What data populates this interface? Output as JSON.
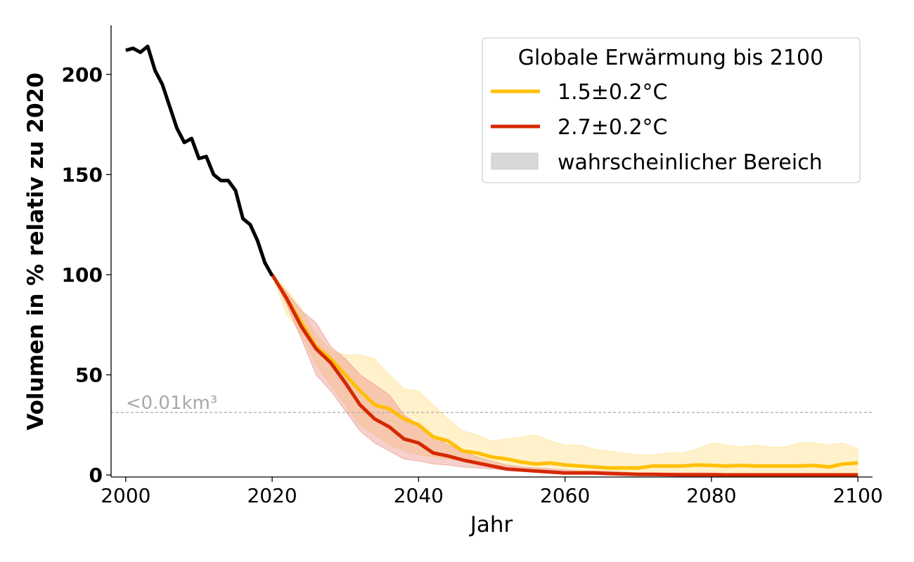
{
  "chart_data": {
    "type": "line",
    "title": "",
    "xlabel": "Jahr",
    "ylabel": "Volumen in % relativ zu 2020",
    "xlim": [
      1998,
      2102
    ],
    "ylim": [
      -1,
      224.5
    ],
    "xticks": [
      2000,
      2020,
      2040,
      2060,
      2080,
      2100
    ],
    "yticks": [
      0,
      50,
      100,
      150,
      200
    ],
    "grid": false,
    "legend": {
      "title": "Globale Erwärmung bis 2100",
      "placement": "top-right",
      "entries": [
        "1.5±0.2°C",
        "2.7±0.2°C",
        "wahrscheinlicher Bereich"
      ]
    },
    "reference_line": {
      "y": 31.2,
      "label": "<0.01km³",
      "color": "#b0b0b0"
    },
    "historical": {
      "color": "#000000",
      "x": [
        2000,
        2001,
        2002,
        2003,
        2004,
        2005,
        2006,
        2007,
        2008,
        2009,
        2010,
        2011,
        2012,
        2013,
        2014,
        2015,
        2016,
        2017,
        2018,
        2019,
        2020
      ],
      "y": [
        212,
        213,
        211,
        214,
        202,
        195,
        184,
        173,
        166,
        168,
        158,
        159,
        150,
        147,
        147,
        142,
        128,
        125,
        117,
        106,
        99.5
      ]
    },
    "projection_x": [
      2020,
      2022,
      2024,
      2026,
      2028,
      2030,
      2032,
      2034,
      2036,
      2038,
      2040,
      2042,
      2044,
      2046,
      2048,
      2050,
      2052,
      2054,
      2056,
      2058,
      2060,
      2062,
      2064,
      2066,
      2068,
      2070,
      2072,
      2074,
      2076,
      2078,
      2080,
      2082,
      2084,
      2086,
      2088,
      2090,
      2092,
      2094,
      2096,
      2098,
      2100
    ],
    "series": [
      {
        "name": "1.5±0.2°C",
        "color": "#ffbf00",
        "band_color": "#ffe08a",
        "mean": [
          100,
          88,
          76,
          64,
          58,
          50,
          42,
          35,
          33,
          28,
          25,
          19,
          17,
          12,
          11,
          9,
          8,
          6.5,
          5.5,
          6,
          5,
          4.5,
          4,
          3.5,
          3.5,
          3.5,
          4.5,
          4.5,
          4.5,
          5,
          4.8,
          4.5,
          4.8,
          4.5,
          4.5,
          4.5,
          4.5,
          4.8,
          4,
          5.5,
          6
        ],
        "lower": [
          100,
          80,
          70,
          55,
          45,
          35,
          25,
          20,
          15,
          12,
          10,
          9,
          8,
          7,
          6,
          5,
          4.5,
          4,
          3.5,
          3,
          2.5,
          2,
          1.8,
          1.5,
          1.2,
          1,
          1,
          1,
          1,
          1,
          1,
          1,
          1,
          1,
          1,
          1,
          1,
          1,
          1,
          1,
          1
        ],
        "upper": [
          100,
          93,
          83,
          70,
          62,
          60,
          60,
          58,
          50,
          43,
          42,
          35,
          28,
          22,
          20,
          17,
          18,
          19,
          20,
          17,
          15,
          15,
          13,
          12,
          11,
          10,
          10,
          11,
          11,
          13,
          16,
          15,
          14,
          15,
          14,
          14,
          16,
          16,
          15,
          16,
          13
        ]
      },
      {
        "name": "2.7±0.2°C",
        "color": "#d62800",
        "band_color": "#e88a80",
        "mean": [
          100,
          88,
          74,
          63,
          56,
          46,
          35,
          28,
          24,
          18,
          16,
          11,
          9.5,
          7.5,
          6,
          4.5,
          3,
          2.5,
          2,
          1.5,
          1,
          1,
          1,
          0.7,
          0.5,
          0.3,
          0.3,
          0.2,
          0.1,
          0.1,
          0.1,
          0,
          0,
          0,
          0,
          0,
          0,
          0,
          0,
          0,
          0
        ],
        "lower": [
          100,
          85,
          68,
          50,
          42,
          32,
          22,
          16,
          12,
          8,
          7,
          5.5,
          5,
          4,
          3.5,
          3,
          2.5,
          2,
          1.5,
          1,
          0.8,
          0.5,
          0.3,
          0.2,
          0.1,
          0,
          0,
          0,
          0,
          0,
          0,
          0,
          0,
          0,
          0,
          0,
          0,
          0,
          0,
          0,
          0
        ],
        "upper": [
          100,
          91,
          82,
          76,
          64,
          58,
          50,
          45,
          40,
          30,
          25,
          20,
          15,
          12,
          9,
          7,
          5,
          4,
          3.5,
          3,
          2.5,
          2,
          2,
          1.8,
          1.5,
          1,
          1,
          1,
          1,
          1,
          1,
          0.8,
          0.8,
          0.8,
          0.8,
          0.8,
          0.8,
          0.8,
          0.8,
          0.8,
          0.8
        ]
      }
    ],
    "range_legend_color": "#d8d8d8"
  }
}
